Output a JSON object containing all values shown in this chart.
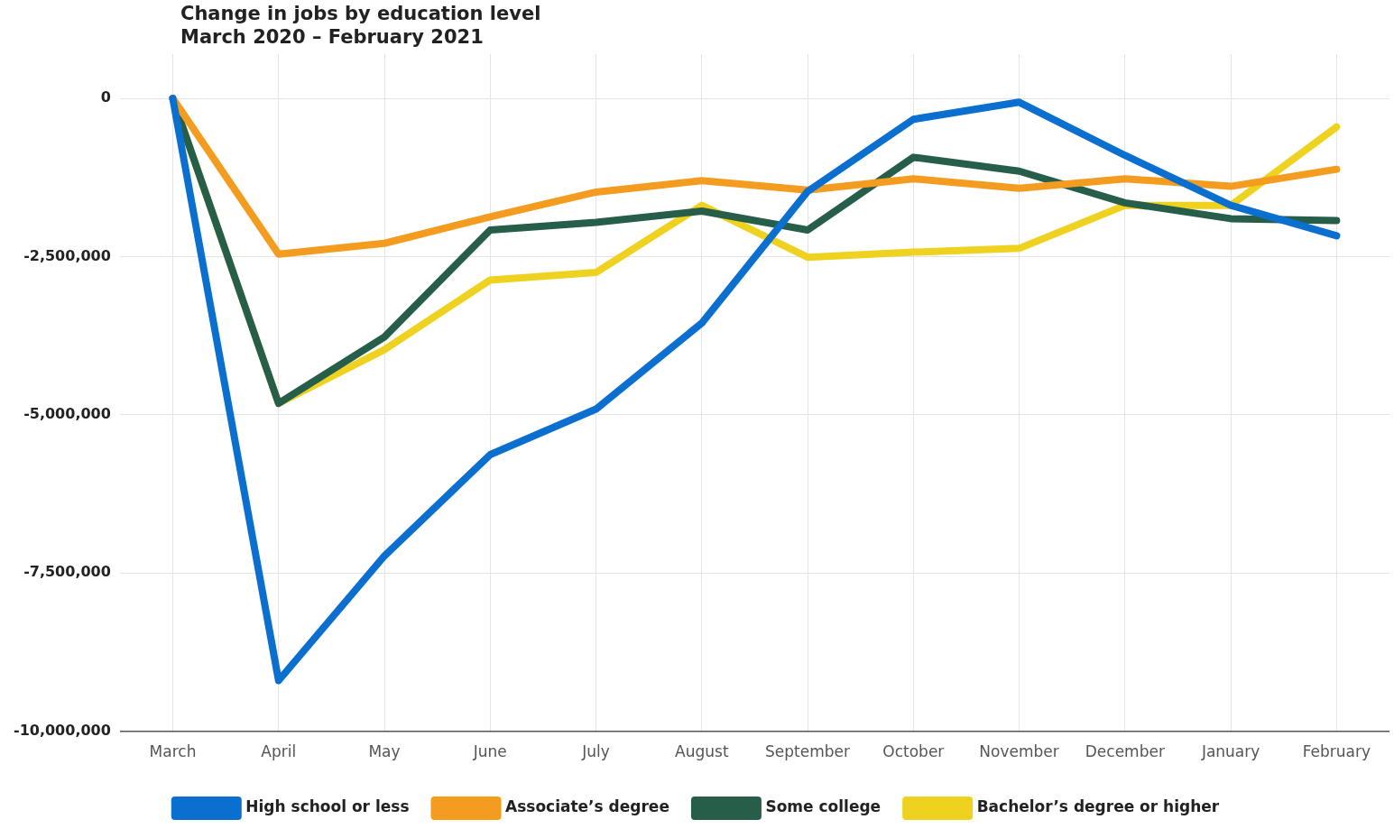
{
  "chart_data": {
    "type": "line",
    "title": "Change in jobs by education level",
    "subtitle": "March 2020 – February 2021",
    "categories": [
      "March",
      "April",
      "May",
      "June",
      "July",
      "August",
      "September",
      "October",
      "November",
      "December",
      "January",
      "February"
    ],
    "series": [
      {
        "name": "High school or less",
        "color": "#0b6fcf",
        "values": [
          0,
          -9200000,
          -7230000,
          -5630000,
          -4910000,
          -3550000,
          -1470000,
          -330000,
          -60000,
          -900000,
          -1690000,
          -2170000
        ]
      },
      {
        "name": "Associate’s degree",
        "color": "#f39c1f",
        "values": [
          0,
          -2460000,
          -2290000,
          -1870000,
          -1480000,
          -1300000,
          -1450000,
          -1270000,
          -1420000,
          -1270000,
          -1390000,
          -1120000
        ]
      },
      {
        "name": "Some college",
        "color": "#265e4a",
        "values": [
          0,
          -4820000,
          -3770000,
          -2080000,
          -1960000,
          -1780000,
          -2080000,
          -930000,
          -1150000,
          -1650000,
          -1900000,
          -1930000
        ]
      },
      {
        "name": "Bachelor’s degree or higher",
        "color": "#efd21f",
        "values": [
          0,
          -4820000,
          -3970000,
          -2870000,
          -2750000,
          -1690000,
          -2510000,
          -2430000,
          -2370000,
          -1690000,
          -1690000,
          -450000
        ]
      }
    ],
    "ylim": [
      -10000000,
      700000
    ],
    "yticks": [
      {
        "value": 0,
        "label": "0"
      },
      {
        "value": -2500000,
        "label": "-2,500,000"
      },
      {
        "value": -5000000,
        "label": "-5,000,000"
      },
      {
        "value": -7500000,
        "label": "-7,500,000"
      },
      {
        "value": -10000000,
        "label": "-10,000,000"
      }
    ],
    "grid": true,
    "legend": "bottom",
    "marker": "none",
    "line_style": "solid"
  }
}
